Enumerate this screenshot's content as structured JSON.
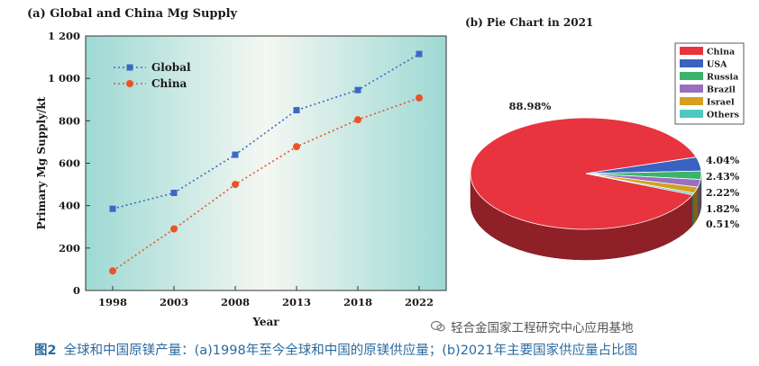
{
  "panel_a": {
    "title": "(a) Global and China Mg Supply"
  },
  "panel_b": {
    "title": "(b) Pie Chart in 2021"
  },
  "caption": {
    "figure": "图2",
    "text": "全球和中国原镁产量：(a)1998年至今全球和中国的原镁供应量；(b)2021年主要国家供应量占比图"
  },
  "watermark": {
    "text": "轻合金国家工程研究中心应用基地"
  },
  "colors": {
    "global": "#3a68c8",
    "china_line": "#e8532a",
    "pie_china": "#e8343f",
    "pie_usa": "#3a62c0",
    "pie_russia": "#3cb36a",
    "pie_brazil": "#9a6fbf",
    "pie_israel": "#d4a020",
    "pie_others": "#4ec9c0"
  },
  "chart_data": [
    {
      "type": "line",
      "title": "(a) Global and China Mg Supply",
      "xlabel": "Year",
      "ylabel": "Primary Mg Supply/kt",
      "x": [
        "1998",
        "2003",
        "2008",
        "2013",
        "2018",
        "2022"
      ],
      "ylim": [
        0,
        1200
      ],
      "yticks": [
        "0",
        "200",
        "400",
        "600",
        "800",
        "1 000",
        "1 200"
      ],
      "legend_position": "top-left",
      "series": [
        {
          "name": "Global",
          "values": [
            385,
            460,
            640,
            850,
            945,
            1115
          ]
        },
        {
          "name": "China",
          "values": [
            92,
            290,
            500,
            678,
            805,
            908
          ]
        }
      ]
    },
    {
      "type": "pie",
      "title": "(b) Pie Chart in 2021",
      "legend_position": "top-right",
      "slices": [
        {
          "name": "China",
          "value": 88.98,
          "label": "88.98%"
        },
        {
          "name": "USA",
          "value": 4.04,
          "label": "4.04%"
        },
        {
          "name": "Russia",
          "value": 2.43,
          "label": "2.43%"
        },
        {
          "name": "Brazil",
          "value": 2.22,
          "label": "2.22%"
        },
        {
          "name": "Israel",
          "value": 1.82,
          "label": "1.82%"
        },
        {
          "name": "Others",
          "value": 0.51,
          "label": "0.51%"
        }
      ]
    }
  ]
}
